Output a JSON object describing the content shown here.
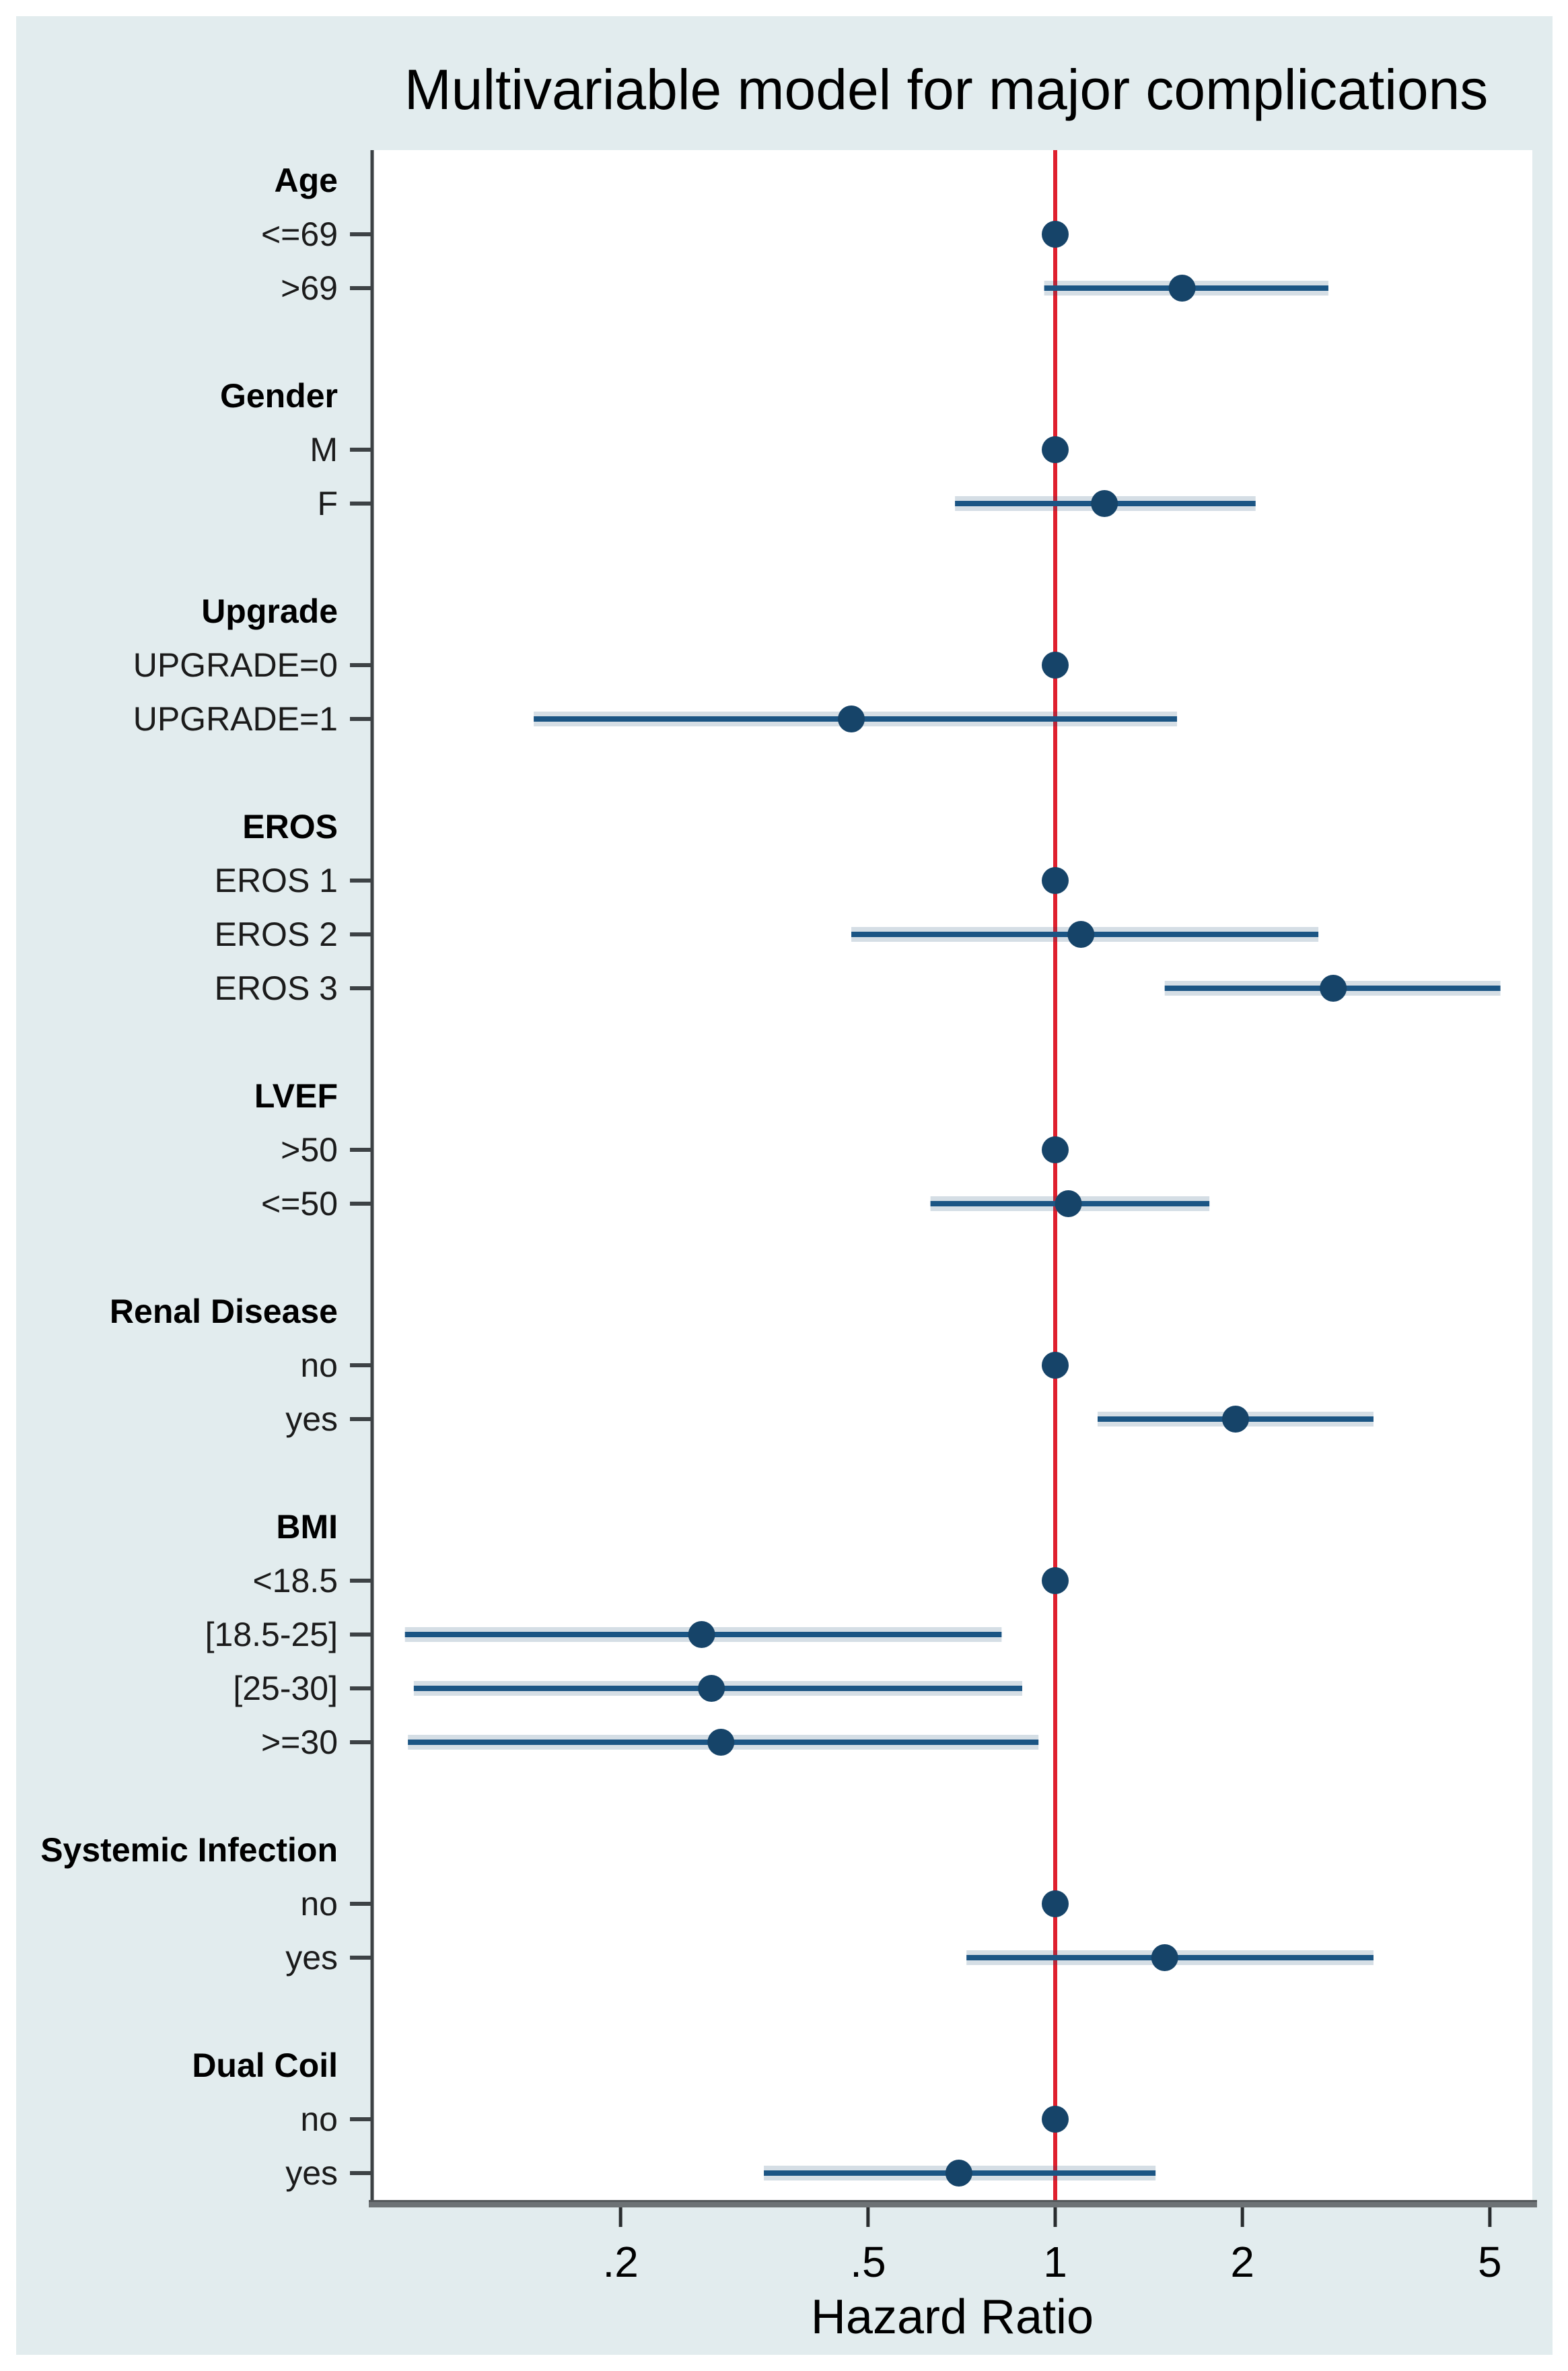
{
  "figure": {
    "title": "Multivariable model for major complications",
    "x_axis_label": "Hazard Ratio"
  },
  "colors": {
    "page_background": "#ffffff",
    "panel_background": "#e2ecee",
    "plot_background": "#ffffff",
    "marker": "#164469",
    "ci_line": "#1b5584",
    "ci_halo": "rgba(23,74,111,0.18)",
    "reference_line": "#df202e",
    "y_axis": "#3d4245",
    "x_axis_band": "#6d7275",
    "x_axis_band_edge": "#54585a",
    "x_tick": "#2a2d2f",
    "header_text": "#000000",
    "item_text": "#1b1b1b"
  },
  "chart_data": {
    "type": "scatter",
    "variant": "forest-plot",
    "title": "Multivariable model for major complications",
    "xlabel": "Hazard Ratio",
    "x_scale": "log",
    "x_domain": [
      0.08,
      5.8
    ],
    "reference_line_x": 1,
    "grid": false,
    "legend": "none",
    "x_ticks": [
      {
        "value": 0.2,
        "label": ".2"
      },
      {
        "value": 0.5,
        "label": ".5"
      },
      {
        "value": 1,
        "label": "1"
      },
      {
        "value": 2,
        "label": "2"
      },
      {
        "value": 5,
        "label": "5"
      }
    ],
    "groups": [
      {
        "label": "Age",
        "items": [
          {
            "label": "<=69",
            "hr": 1.0,
            "reference": true
          },
          {
            "label": ">69",
            "hr": 1.6,
            "ci_low": 0.96,
            "ci_high": 2.75
          }
        ]
      },
      {
        "label": "Gender",
        "items": [
          {
            "label": "M",
            "hr": 1.0,
            "reference": true
          },
          {
            "label": "F",
            "hr": 1.2,
            "ci_low": 0.69,
            "ci_high": 2.1
          }
        ]
      },
      {
        "label": "Upgrade",
        "items": [
          {
            "label": "UPGRADE=0",
            "hr": 1.0,
            "reference": true
          },
          {
            "label": "UPGRADE=1",
            "hr": 0.47,
            "ci_low": 0.145,
            "ci_high": 1.57
          }
        ]
      },
      {
        "label": "EROS",
        "items": [
          {
            "label": "EROS 1",
            "hr": 1.0,
            "reference": true
          },
          {
            "label": "EROS 2",
            "hr": 1.1,
            "ci_low": 0.47,
            "ci_high": 2.65
          },
          {
            "label": "EROS 3",
            "hr": 2.8,
            "ci_low": 1.5,
            "ci_high": 5.2
          }
        ]
      },
      {
        "label": "LVEF",
        "items": [
          {
            "label": ">50",
            "hr": 1.0,
            "reference": true
          },
          {
            "label": "<=50",
            "hr": 1.05,
            "ci_low": 0.63,
            "ci_high": 1.77
          }
        ]
      },
      {
        "label": "Renal Disease",
        "items": [
          {
            "label": "no",
            "hr": 1.0,
            "reference": true
          },
          {
            "label": "yes",
            "hr": 1.95,
            "ci_low": 1.17,
            "ci_high": 3.25
          }
        ]
      },
      {
        "label": "BMI",
        "items": [
          {
            "label": "<18.5",
            "hr": 1.0,
            "reference": true
          },
          {
            "label": "[18.5-25]",
            "hr": 0.27,
            "ci_low": 0.09,
            "ci_high": 0.82
          },
          {
            "label": "[25-30]",
            "hr": 0.28,
            "ci_low": 0.093,
            "ci_high": 0.885
          },
          {
            "label": ">=30",
            "hr": 0.29,
            "ci_low": 0.091,
            "ci_high": 0.94
          }
        ]
      },
      {
        "label": "Systemic Infection",
        "items": [
          {
            "label": "no",
            "hr": 1.0,
            "reference": true
          },
          {
            "label": "yes",
            "hr": 1.5,
            "ci_low": 0.72,
            "ci_high": 3.25
          }
        ]
      },
      {
        "label": "Dual Coil",
        "items": [
          {
            "label": "no",
            "hr": 1.0,
            "reference": true
          },
          {
            "label": "yes",
            "hr": 0.7,
            "ci_low": 0.34,
            "ci_high": 1.45
          }
        ]
      }
    ]
  }
}
